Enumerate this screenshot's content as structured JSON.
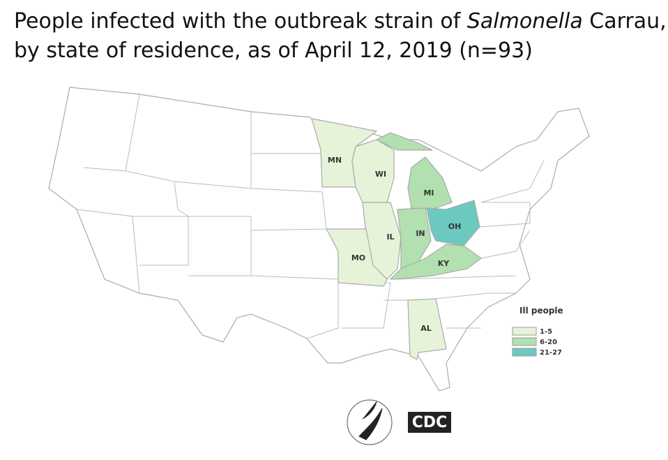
{
  "title": {
    "line1_start": "People infected with the outbreak strain of ",
    "line1_italic": "Salmonella",
    "line1_end": " Carrau,",
    "line2": "by state of residence, as of April 12, 2019 (n=93)"
  },
  "states": [
    {
      "label": "MN",
      "color": "#e6f3d9"
    },
    {
      "label": "WI",
      "color": "#e6f3d9"
    },
    {
      "label": "MI",
      "color": "#b3e0b0"
    },
    {
      "label": "IL",
      "color": "#e6f3d9"
    },
    {
      "label": "IN",
      "color": "#b3e0b0"
    },
    {
      "label": "OH",
      "color": "#6cc9bf"
    },
    {
      "label": "KY",
      "color": "#b3e0b0"
    },
    {
      "label": "MO",
      "color": "#e6f3d9"
    },
    {
      "label": "AL",
      "color": "#e6f3d9"
    }
  ],
  "legend": {
    "title": "Ill people",
    "items": [
      {
        "label": "1-5",
        "color": "#e6f3d9"
      },
      {
        "label": "6-20",
        "color": "#b3e0b0"
      },
      {
        "label": "21-27",
        "color": "#6cc9bf"
      }
    ]
  },
  "logo": {
    "cdc": "CDC"
  }
}
